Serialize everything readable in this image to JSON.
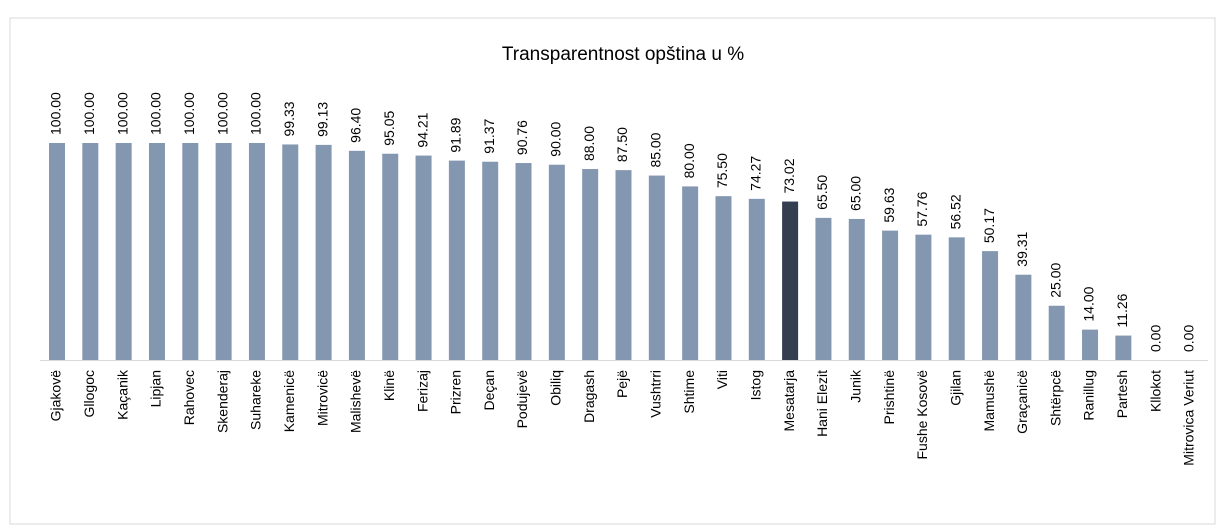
{
  "chart_data": {
    "type": "bar",
    "title": "Transparentnost opština u %",
    "categories": [
      "Gjakovë",
      "Gllogoc",
      "Kaçanik",
      "Lipjan",
      "Rahovec",
      "Skenderaj",
      "Suhareke",
      "Kamenicë",
      "Mitrovicë",
      "Malishevë",
      "Klinë",
      "Ferizaj",
      "Prizren",
      "Deçan",
      "Podujevë",
      "Obiliq",
      "Dragash",
      "Pejë",
      "Vushtrri",
      "Shtime",
      "Viti",
      "Istog",
      "Mesatarja",
      "Hani Elezit",
      "Junik",
      "Prishtinë",
      "Fushe Kosovë",
      "Gjilan",
      "Mamushë",
      "Graçanicë",
      "Shtërpcë",
      "Ranillug",
      "Partesh",
      "Kllokot",
      "Mitrovica Veriut"
    ],
    "values": [
      100,
      100,
      100,
      100,
      100,
      100,
      100,
      99.33,
      99.13,
      96.4,
      95.05,
      94.21,
      91.89,
      91.37,
      90.76,
      90,
      88,
      87.5,
      85,
      80,
      75.5,
      74.27,
      73.02,
      65.5,
      65,
      59.63,
      57.76,
      56.52,
      50.17,
      39.31,
      25,
      14,
      11.26,
      0,
      0
    ],
    "value_labels": [
      "100.00",
      "100.00",
      "100.00",
      "100.00",
      "100.00",
      "100.00",
      "100.00",
      "99.33",
      "99.13",
      "96.40",
      "95.05",
      "94.21",
      "91.89",
      "91.37",
      "90.76",
      "90.00",
      "88.00",
      "87.50",
      "85.00",
      "80.00",
      "75.50",
      "74.27",
      "73.02",
      "65.50",
      "65.00",
      "59.63",
      "57.76",
      "56.52",
      "50.17",
      "39.31",
      "25.00",
      "14.00",
      "11.26",
      "0.00",
      "0.00"
    ],
    "colors": [
      "#8497b0",
      "#8497b0",
      "#8497b0",
      "#8497b0",
      "#8497b0",
      "#8497b0",
      "#8497b0",
      "#8497b0",
      "#8497b0",
      "#8497b0",
      "#8497b0",
      "#8497b0",
      "#8497b0",
      "#8497b0",
      "#8497b0",
      "#8497b0",
      "#8497b0",
      "#8497b0",
      "#8497b0",
      "#8497b0",
      "#8497b0",
      "#8497b0",
      "#333f50",
      "#8497b0",
      "#8497b0",
      "#8497b0",
      "#8497b0",
      "#8497b0",
      "#8497b0",
      "#8497b0",
      "#8497b0",
      "#8497b0",
      "#8497b0",
      "#8497b0",
      "#8497b0"
    ]
  }
}
